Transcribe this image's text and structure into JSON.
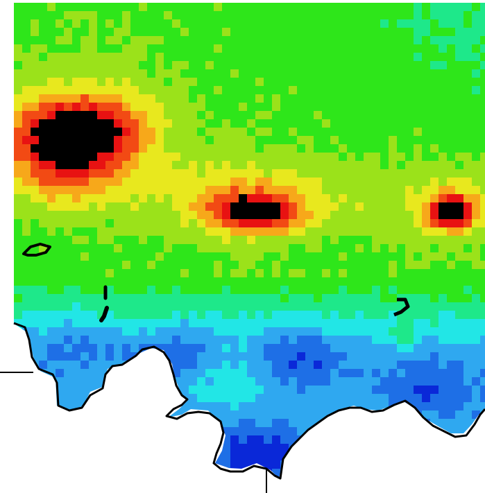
{
  "map": {
    "type": "gridded heatmap overlay with coastline",
    "colormap": [
      "#0a28d8",
      "#1e6fe6",
      "#2fa8f0",
      "#22e6e6",
      "#1ee88a",
      "#2ee61a",
      "#9be21a",
      "#e8e81e",
      "#f7a81a",
      "#f24a14",
      "#e81212",
      "#000000"
    ],
    "colors": {
      "background": "#ffffff",
      "coastline": "#000000",
      "saturated_cell": "#000000"
    },
    "features": [
      "high-value-cluster-northwest",
      "high-value-cluster-center",
      "high-value-cluster-east",
      "low-value-band-south",
      "coastline-outline",
      "island-outlines"
    ],
    "legend": "",
    "title": ""
  }
}
